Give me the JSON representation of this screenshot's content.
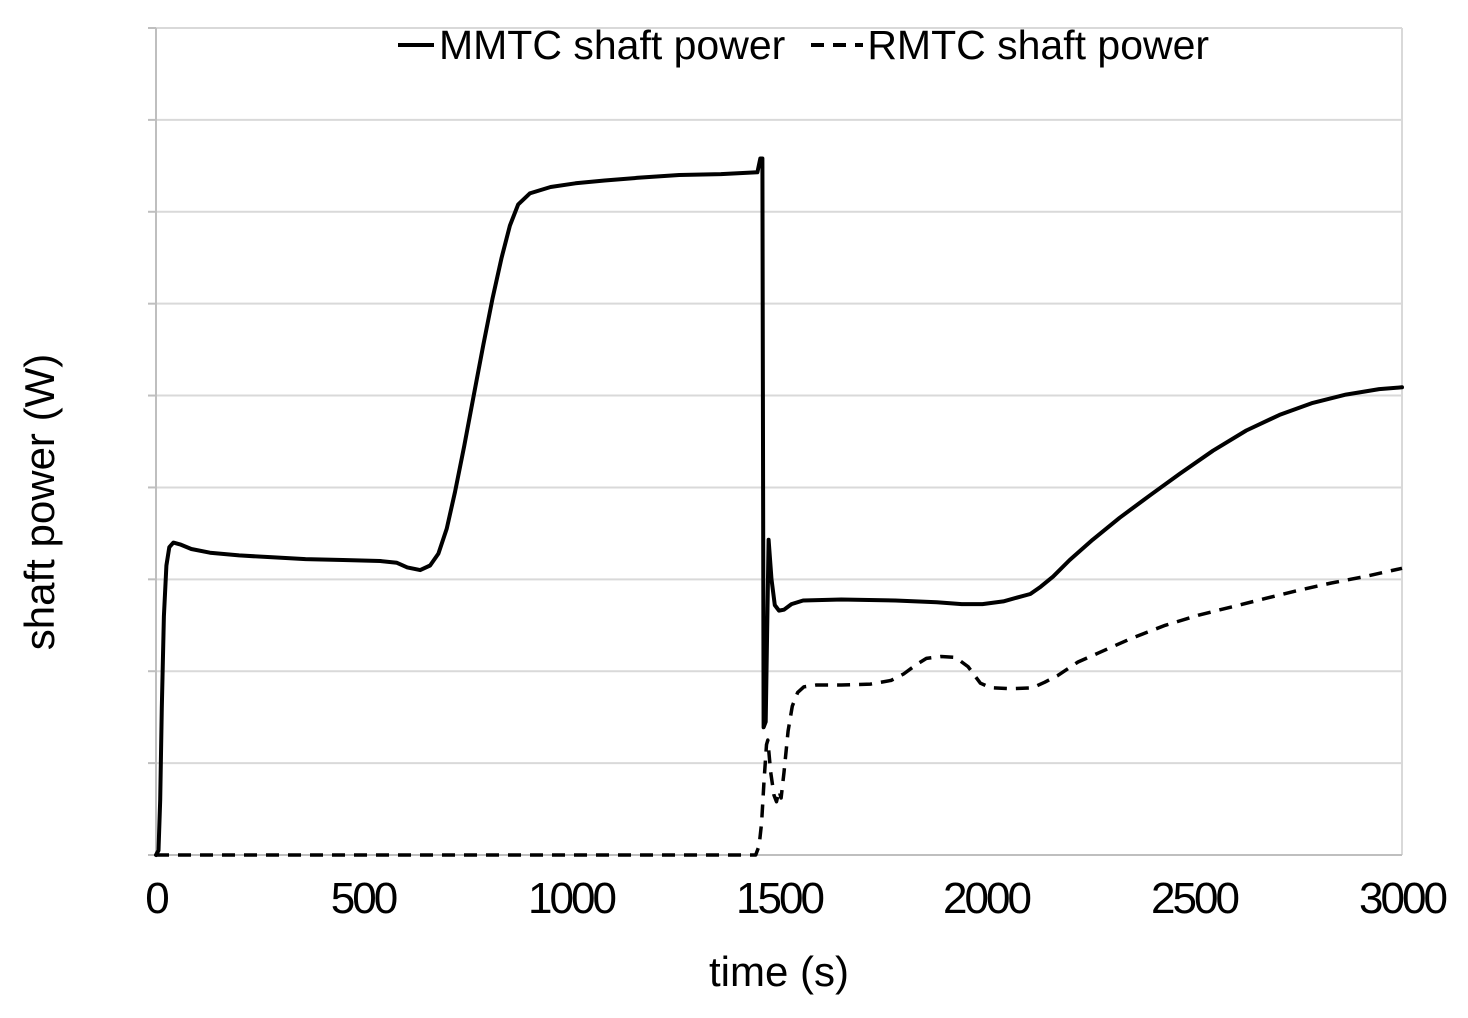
{
  "colors": {
    "background": "#ffffff",
    "series_line": "#000000",
    "gridline": "#d9d9d9",
    "axis_line": "#bfbfbf",
    "text": "#000000"
  },
  "legend": {
    "items": [
      {
        "label": "MMTC shaft power",
        "style": "solid"
      },
      {
        "label": "RMTC shaft power",
        "style": "dashed"
      }
    ]
  },
  "chart_data": {
    "type": "line",
    "title": "",
    "xlabel": "time (s)",
    "ylabel": "shaft power (W)",
    "xlim": [
      0,
      3000
    ],
    "ylim": [
      0,
      9
    ],
    "x_ticks": [
      "0",
      "500",
      "1000",
      "1500",
      "2000",
      "2500",
      "3000"
    ],
    "y_ticks_labeled": false,
    "y_unit_note": "y axis shows unlabeled gridlines; values given in gridline units (0 = bottom axis, 9 = top border)",
    "grid": "horizontal",
    "y_gridline_count": 10,
    "legend_position": "top-center",
    "series": [
      {
        "name": "MMTC shaft power",
        "style": "solid",
        "color": "#000000",
        "points": [
          [
            0,
            0
          ],
          [
            6,
            0.05
          ],
          [
            10,
            0.6
          ],
          [
            14,
            1.6
          ],
          [
            19,
            2.6
          ],
          [
            25,
            3.15
          ],
          [
            32,
            3.35
          ],
          [
            42,
            3.4
          ],
          [
            58,
            3.38
          ],
          [
            85,
            3.33
          ],
          [
            130,
            3.29
          ],
          [
            200,
            3.26
          ],
          [
            280,
            3.24
          ],
          [
            360,
            3.22
          ],
          [
            450,
            3.21
          ],
          [
            540,
            3.2
          ],
          [
            580,
            3.18
          ],
          [
            605,
            3.13
          ],
          [
            636,
            3.1
          ],
          [
            660,
            3.15
          ],
          [
            680,
            3.28
          ],
          [
            700,
            3.55
          ],
          [
            720,
            3.95
          ],
          [
            742,
            4.45
          ],
          [
            765,
            5.0
          ],
          [
            788,
            5.55
          ],
          [
            810,
            6.05
          ],
          [
            832,
            6.5
          ],
          [
            852,
            6.85
          ],
          [
            872,
            7.08
          ],
          [
            900,
            7.2
          ],
          [
            950,
            7.27
          ],
          [
            1010,
            7.31
          ],
          [
            1080,
            7.34
          ],
          [
            1160,
            7.37
          ],
          [
            1260,
            7.4
          ],
          [
            1360,
            7.41
          ],
          [
            1448,
            7.43
          ],
          [
            1455,
            7.58
          ],
          [
            1460,
            7.58
          ],
          [
            1463,
            1.39
          ],
          [
            1468,
            1.45
          ],
          [
            1475,
            3.43
          ],
          [
            1482,
            3.0
          ],
          [
            1490,
            2.72
          ],
          [
            1500,
            2.66
          ],
          [
            1512,
            2.67
          ],
          [
            1530,
            2.73
          ],
          [
            1558,
            2.77
          ],
          [
            1650,
            2.78
          ],
          [
            1780,
            2.77
          ],
          [
            1880,
            2.75
          ],
          [
            1940,
            2.73
          ],
          [
            1990,
            2.73
          ],
          [
            2040,
            2.76
          ],
          [
            2080,
            2.81
          ],
          [
            2105,
            2.84
          ],
          [
            2130,
            2.92
          ],
          [
            2160,
            3.03
          ],
          [
            2200,
            3.21
          ],
          [
            2255,
            3.43
          ],
          [
            2320,
            3.67
          ],
          [
            2395,
            3.92
          ],
          [
            2465,
            4.15
          ],
          [
            2545,
            4.4
          ],
          [
            2625,
            4.62
          ],
          [
            2705,
            4.79
          ],
          [
            2785,
            4.92
          ],
          [
            2865,
            5.01
          ],
          [
            2945,
            5.07
          ],
          [
            3000,
            5.09
          ]
        ]
      },
      {
        "name": "RMTC shaft power",
        "style": "dashed",
        "color": "#000000",
        "points": [
          [
            0,
            0
          ],
          [
            300,
            0
          ],
          [
            600,
            0
          ],
          [
            900,
            0
          ],
          [
            1200,
            0
          ],
          [
            1400,
            0
          ],
          [
            1444,
            0
          ],
          [
            1452,
            0.1
          ],
          [
            1458,
            0.35
          ],
          [
            1464,
            0.8
          ],
          [
            1470,
            1.2
          ],
          [
            1473,
            1.25
          ],
          [
            1480,
            0.9
          ],
          [
            1488,
            0.65
          ],
          [
            1494,
            0.58
          ],
          [
            1500,
            0.7
          ],
          [
            1505,
            0.62
          ],
          [
            1512,
            0.9
          ],
          [
            1522,
            1.35
          ],
          [
            1532,
            1.62
          ],
          [
            1545,
            1.77
          ],
          [
            1560,
            1.83
          ],
          [
            1590,
            1.85
          ],
          [
            1650,
            1.85
          ],
          [
            1720,
            1.86
          ],
          [
            1770,
            1.9
          ],
          [
            1800,
            1.97
          ],
          [
            1830,
            2.07
          ],
          [
            1855,
            2.14
          ],
          [
            1890,
            2.16
          ],
          [
            1925,
            2.15
          ],
          [
            1955,
            2.05
          ],
          [
            1985,
            1.87
          ],
          [
            2010,
            1.82
          ],
          [
            2060,
            1.81
          ],
          [
            2110,
            1.82
          ],
          [
            2140,
            1.88
          ],
          [
            2170,
            1.95
          ],
          [
            2220,
            2.1
          ],
          [
            2270,
            2.2
          ],
          [
            2350,
            2.36
          ],
          [
            2430,
            2.5
          ],
          [
            2510,
            2.61
          ],
          [
            2590,
            2.7
          ],
          [
            2670,
            2.79
          ],
          [
            2750,
            2.88
          ],
          [
            2830,
            2.96
          ],
          [
            2910,
            3.03
          ],
          [
            3000,
            3.12
          ]
        ]
      }
    ]
  }
}
